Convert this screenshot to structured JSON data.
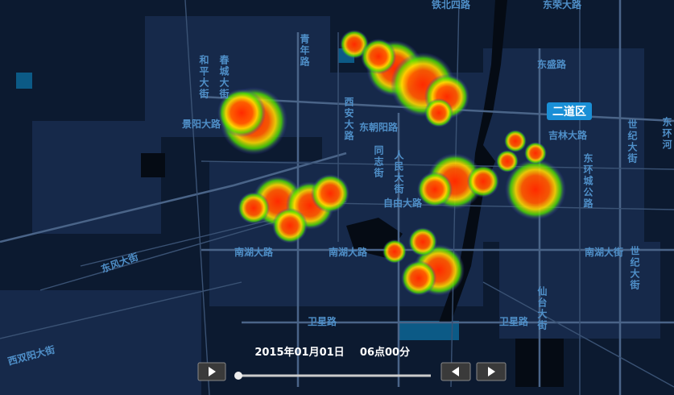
{
  "map": {
    "district_label": "二道区",
    "street_labels": [
      "铁北四路",
      "东荣大路",
      "景阳大路",
      "东朝阳路",
      "吉林大路",
      "东风大街",
      "南湖大路",
      "南湖大路",
      "南湖大街",
      "卫星路",
      "卫星路",
      "西双阳大街",
      "自由大路",
      "东盛路",
      "青年路",
      "和平大街",
      "春城大街",
      "同志街",
      "人民大街",
      "世纪大街",
      "东环城公路",
      "仙台大街",
      "东环河",
      "世纪大街",
      "西安大路"
    ]
  },
  "timeline": {
    "date": "2015年01月01日",
    "time": "06点00分"
  }
}
